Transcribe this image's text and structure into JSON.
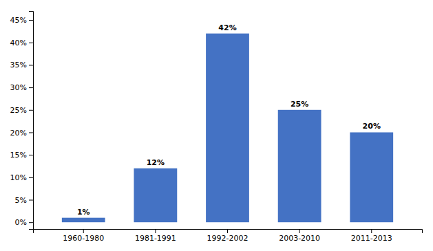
{
  "chart_data": {
    "type": "bar",
    "categories": [
      "1960-1980",
      "1981-1991",
      "1992-2002",
      "2003-2010",
      "2011-2013"
    ],
    "values": [
      1,
      12,
      42,
      25,
      20
    ],
    "value_labels": [
      "1%",
      "12%",
      "42%",
      "25%",
      "20%"
    ],
    "data_labels": true,
    "color": "#4472C4",
    "ylim": [
      -1.5,
      47
    ],
    "yticks": [
      {
        "value": 0,
        "label": "0%"
      },
      {
        "value": 5,
        "label": "5%"
      },
      {
        "value": 10,
        "label": "10%"
      },
      {
        "value": 15,
        "label": "15%"
      },
      {
        "value": 20,
        "label": "20%"
      },
      {
        "value": 25,
        "label": "25%"
      },
      {
        "value": 30,
        "label": "30%"
      },
      {
        "value": 35,
        "label": "35%"
      },
      {
        "value": 40,
        "label": "40%"
      },
      {
        "value": 45,
        "label": "45%"
      }
    ],
    "grid": false
  }
}
